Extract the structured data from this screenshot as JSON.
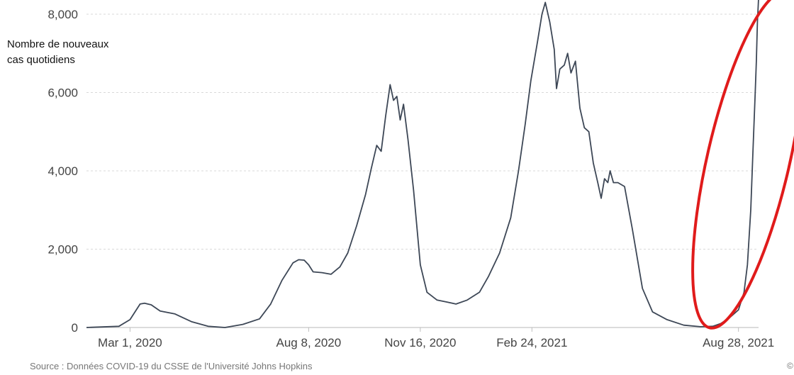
{
  "chart_data": {
    "type": "line",
    "ylabel_lines": [
      "Nombre de nouveaux",
      "cas quotidiens"
    ],
    "ylim": [
      0,
      8000
    ],
    "yticks": [
      {
        "value": 0,
        "label": "0"
      },
      {
        "value": 2000,
        "label": "2,000"
      },
      {
        "value": 4000,
        "label": "4,000"
      },
      {
        "value": 6000,
        "label": "6,000"
      },
      {
        "value": 8000,
        "label": "8,000"
      }
    ],
    "xlim": [
      "2020-01-22",
      "2021-09-15"
    ],
    "xticks": [
      {
        "date": "2020-03-01",
        "label": "Mar 1, 2020"
      },
      {
        "date": "2020-08-08",
        "label": "Aug 8, 2020"
      },
      {
        "date": "2020-11-16",
        "label": "Nov 16, 2020"
      },
      {
        "date": "2021-02-24",
        "label": "Feb 24, 2021"
      },
      {
        "date": "2021-08-28",
        "label": "Aug 28, 2021"
      }
    ],
    "grid": true,
    "series": [
      {
        "color": "#3d4756",
        "points": [
          [
            "2020-01-22",
            0
          ],
          [
            "2020-02-20",
            30
          ],
          [
            "2020-03-01",
            200
          ],
          [
            "2020-03-10",
            600
          ],
          [
            "2020-03-14",
            620
          ],
          [
            "2020-03-20",
            580
          ],
          [
            "2020-03-28",
            420
          ],
          [
            "2020-04-10",
            350
          ],
          [
            "2020-04-25",
            150
          ],
          [
            "2020-05-10",
            30
          ],
          [
            "2020-05-25",
            0
          ],
          [
            "2020-06-10",
            80
          ],
          [
            "2020-06-25",
            220
          ],
          [
            "2020-07-05",
            600
          ],
          [
            "2020-07-15",
            1200
          ],
          [
            "2020-07-25",
            1650
          ],
          [
            "2020-07-30",
            1730
          ],
          [
            "2020-08-04",
            1720
          ],
          [
            "2020-08-08",
            1600
          ],
          [
            "2020-08-12",
            1420
          ],
          [
            "2020-08-20",
            1400
          ],
          [
            "2020-08-28",
            1360
          ],
          [
            "2020-09-05",
            1550
          ],
          [
            "2020-09-12",
            1900
          ],
          [
            "2020-09-20",
            2600
          ],
          [
            "2020-09-28",
            3400
          ],
          [
            "2020-10-03",
            4050
          ],
          [
            "2020-10-08",
            4650
          ],
          [
            "2020-10-12",
            4500
          ],
          [
            "2020-10-16",
            5400
          ],
          [
            "2020-10-20",
            6200
          ],
          [
            "2020-10-23",
            5800
          ],
          [
            "2020-10-26",
            5900
          ],
          [
            "2020-10-29",
            5300
          ],
          [
            "2020-11-01",
            5700
          ],
          [
            "2020-11-05",
            4800
          ],
          [
            "2020-11-10",
            3500
          ],
          [
            "2020-11-16",
            1600
          ],
          [
            "2020-11-22",
            900
          ],
          [
            "2020-12-01",
            700
          ],
          [
            "2020-12-10",
            650
          ],
          [
            "2020-12-18",
            600
          ],
          [
            "2020-12-28",
            700
          ],
          [
            "2021-01-08",
            900
          ],
          [
            "2021-01-16",
            1300
          ],
          [
            "2021-01-26",
            1900
          ],
          [
            "2021-02-05",
            2800
          ],
          [
            "2021-02-12",
            4000
          ],
          [
            "2021-02-18",
            5200
          ],
          [
            "2021-02-23",
            6300
          ],
          [
            "2021-03-01",
            7300
          ],
          [
            "2021-03-05",
            8000
          ],
          [
            "2021-03-08",
            8300
          ],
          [
            "2021-03-12",
            7800
          ],
          [
            "2021-03-16",
            7100
          ],
          [
            "2021-03-18",
            6100
          ],
          [
            "2021-03-21",
            6600
          ],
          [
            "2021-03-25",
            6700
          ],
          [
            "2021-03-28",
            7000
          ],
          [
            "2021-03-31",
            6500
          ],
          [
            "2021-04-04",
            6800
          ],
          [
            "2021-04-08",
            5600
          ],
          [
            "2021-04-12",
            5100
          ],
          [
            "2021-04-16",
            5000
          ],
          [
            "2021-04-20",
            4200
          ],
          [
            "2021-04-24",
            3700
          ],
          [
            "2021-04-27",
            3300
          ],
          [
            "2021-04-30",
            3800
          ],
          [
            "2021-05-03",
            3700
          ],
          [
            "2021-05-05",
            4000
          ],
          [
            "2021-05-08",
            3700
          ],
          [
            "2021-05-12",
            3700
          ],
          [
            "2021-05-18",
            3600
          ],
          [
            "2021-05-25",
            2500
          ],
          [
            "2021-06-03",
            1000
          ],
          [
            "2021-06-12",
            400
          ],
          [
            "2021-06-25",
            200
          ],
          [
            "2021-07-10",
            60
          ],
          [
            "2021-07-25",
            20
          ],
          [
            "2021-08-05",
            30
          ],
          [
            "2021-08-12",
            100
          ],
          [
            "2021-08-20",
            250
          ],
          [
            "2021-08-28",
            450
          ],
          [
            "2021-09-02",
            900
          ],
          [
            "2021-09-05",
            1600
          ],
          [
            "2021-09-08",
            3000
          ],
          [
            "2021-09-10",
            4500
          ],
          [
            "2021-09-12",
            6000
          ],
          [
            "2021-09-13",
            6800
          ],
          [
            "2021-09-14",
            7800
          ],
          [
            "2021-09-15",
            8400
          ]
        ]
      }
    ],
    "annotations": [
      {
        "type": "ellipse",
        "color": "#e01b1b",
        "description_of_target": "recent surge from Aug 2021"
      }
    ]
  },
  "source": "Source : Données COVID-19 du CSSE de l'Université Johns Hopkins",
  "corner_text": "©"
}
